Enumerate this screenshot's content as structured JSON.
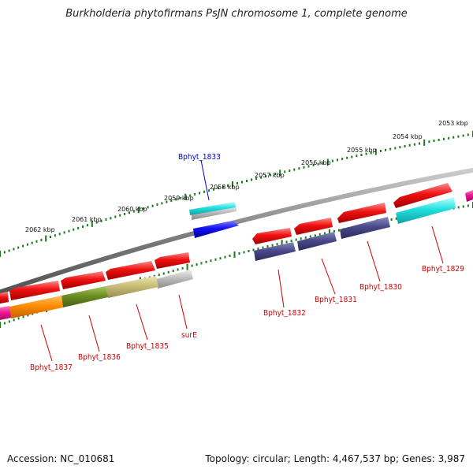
{
  "title": "Burkholderia phytofirmans PsJN chromosome 1, complete genome",
  "footer": {
    "accession": "Accession: NC_010681",
    "summary": "Topology: circular; Length: 4,467,537 bp; Genes: 3,987"
  },
  "colors": {
    "background": "#ffffff",
    "backbone": "#808080",
    "tick_green": "#1a7a1a",
    "label_red": "#cc0000",
    "label_blue": "#0000cc",
    "gene_red": "#ee1111",
    "gene_navy": "#4a4a8a",
    "gene_cyan": "#22e0e0",
    "gene_blue": "#1010ee",
    "gene_grey": "#bdbdbd",
    "gene_orange": "#ff8c00",
    "gene_olive": "#6b8e23",
    "gene_khaki": "#c8bd78",
    "gene_magenta": "#ee1493"
  },
  "kbp_scale": [
    "2053 kbp",
    "2054 kbp",
    "2055 kbp",
    "2056 kbp",
    "2057 kbp",
    "2058 kbp",
    "2059 kbp",
    "2060 kbp",
    "2061 kbp",
    "2062 kbp"
  ],
  "genes": [
    {
      "name": "Bphyt_1829",
      "color": "label_red"
    },
    {
      "name": "Bphyt_1830",
      "color": "label_red"
    },
    {
      "name": "Bphyt_1831",
      "color": "label_red"
    },
    {
      "name": "Bphyt_1832",
      "color": "label_red"
    },
    {
      "name": "Bphyt_1833",
      "color": "label_blue"
    },
    {
      "name": "surE",
      "color": "label_red"
    },
    {
      "name": "Bphyt_1835",
      "color": "label_red"
    },
    {
      "name": "Bphyt_1836",
      "color": "label_red"
    },
    {
      "name": "Bphyt_1837",
      "color": "label_red"
    }
  ]
}
